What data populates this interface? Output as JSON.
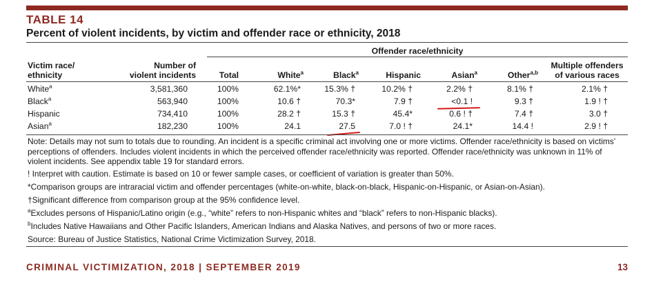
{
  "table_number": "TABLE 14",
  "title": "Percent of violent incidents, by victim and offender race or ethnicity, 2018",
  "group_header": "Offender race/ethnicity",
  "headers": {
    "victim_line1": "Victim race/",
    "victim_line2": "ethnicity",
    "number_line1": "Number of",
    "number_line2": "violent incidents",
    "total": "Total",
    "white": "White",
    "white_sup": "a",
    "black": "Black",
    "black_sup": "a",
    "hispanic": "Hispanic",
    "asian": "Asian",
    "asian_sup": "a",
    "other": "Other",
    "other_sup": "a,b",
    "multiple_line1": "Multiple offenders",
    "multiple_line2": "of various races"
  },
  "rows": [
    {
      "victim": "White",
      "sup": "a",
      "number": "3,581,360",
      "total": "100%",
      "white": "62.1%*",
      "black": "15.3% †",
      "hispanic": "10.2% †",
      "asian": "2.2% †",
      "other": "8.1% †",
      "multiple": "2.1% †"
    },
    {
      "victim": "Black",
      "sup": "a",
      "number": "563,940",
      "total": "100%",
      "white": "10.6 †",
      "black": "70.3*",
      "hispanic": "7.9 †",
      "asian": "<0.1 !",
      "other": "9.3 †",
      "multiple": "1.9 ! †"
    },
    {
      "victim": "Hispanic",
      "sup": "",
      "number": "734,410",
      "total": "100%",
      "white": "28.2 †",
      "black": "15.3 †",
      "hispanic": "45.4*",
      "asian": "0.6 ! †",
      "other": "7.4 †",
      "multiple": "3.0 †"
    },
    {
      "victim": "Asian",
      "sup": "a",
      "number": "182,230",
      "total": "100%",
      "white": "24.1",
      "black": "27.5",
      "hispanic": "7.0 ! †",
      "asian": "24.1*",
      "other": "14.4 !",
      "multiple": "2.9 ! †"
    }
  ],
  "notes": {
    "main": "Note: Details may not sum to totals due to rounding. An incident is a specific criminal act involving one or more victims. Offender race/ethnicity is based on victims’ perceptions of offenders. Includes violent incidents in which the perceived offender race/ethnicity was reported. Offender race/ethnicity was unknown in 11% of violent incidents. See appendix table 19 for standard errors.",
    "caution": "! Interpret with caution. Estimate is based on 10 or fewer sample cases, or coefficient of variation is greater than 50%.",
    "comparison": "*Comparison groups are intraracial victim and offender percentages (white-on-white, black-on-black, Hispanic-on-Hispanic, or Asian-on-Asian).",
    "significant": "†Significant difference from comparison group at the 95% confidence level.",
    "a_mark": "a",
    "a_text": "Excludes persons of Hispanic/Latino origin (e.g., “white” refers to non-Hispanic whites and “black” refers to non-Hispanic blacks).",
    "b_mark": "b",
    "b_text": "Includes Native Hawaiians and Other Pacific Islanders, American Indians and Alaska Natives, and persons of two or more races.",
    "source": "Source: Bureau of Justice Statistics, National Crime Victimization Survey, 2018."
  },
  "footer": {
    "left": "CRIMINAL VICTIMIZATION, 2018 | SEPTEMBER 2019",
    "page": "13"
  },
  "colors": {
    "accent": "#8c2a22",
    "annotation_red": "#d4181a"
  }
}
